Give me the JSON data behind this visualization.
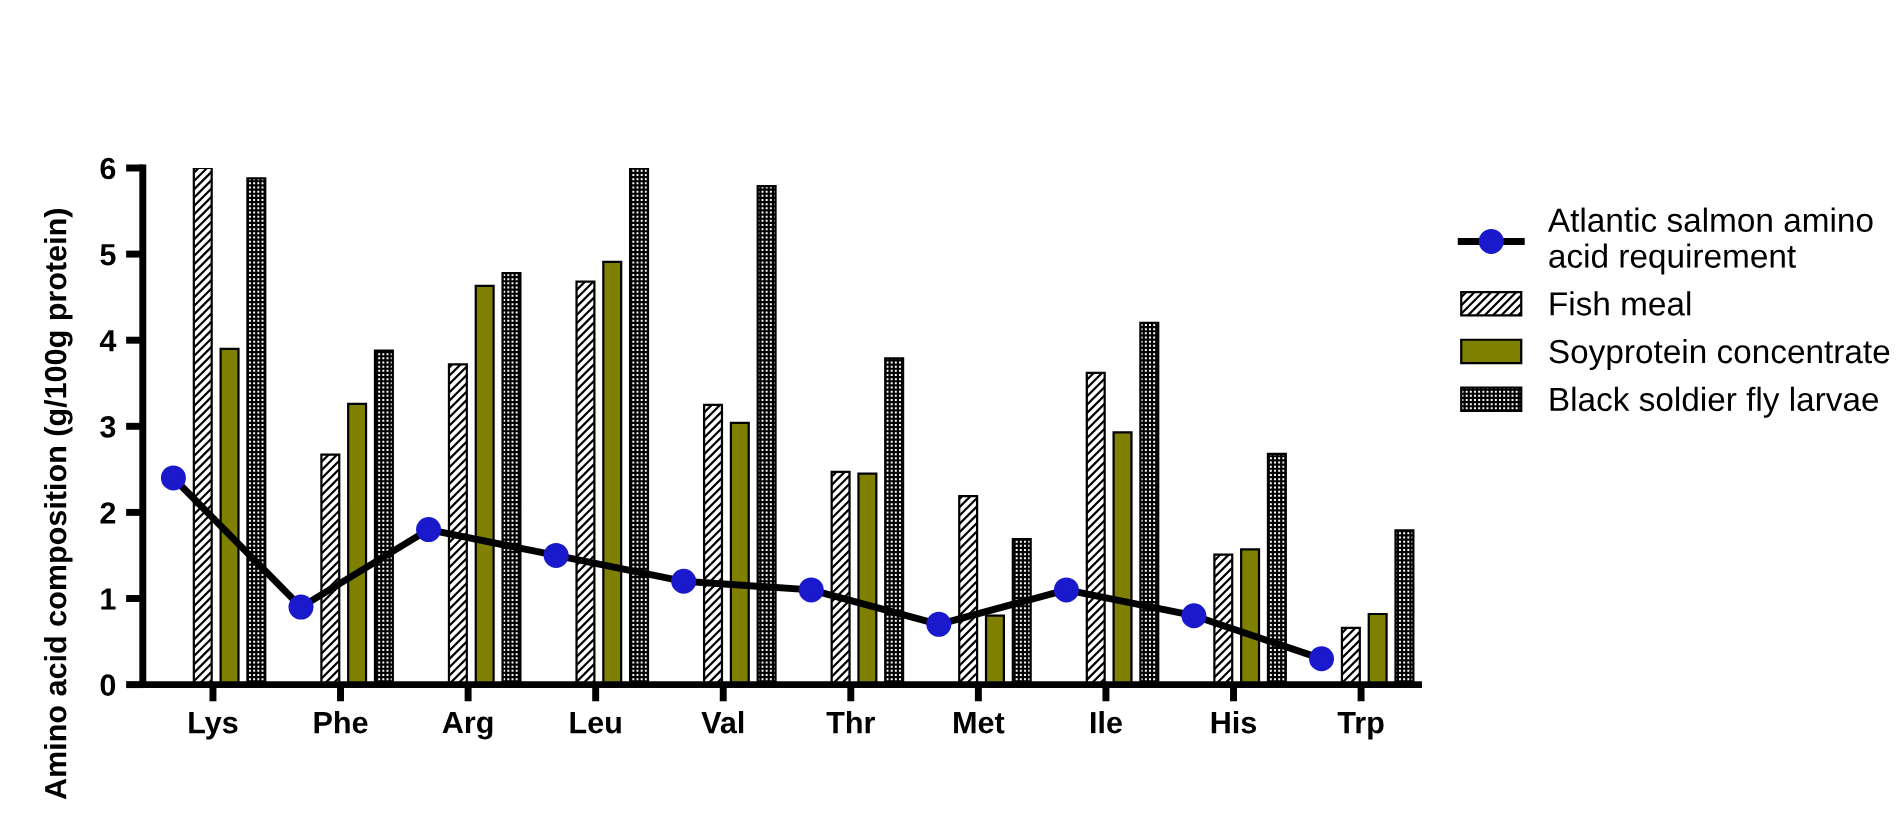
{
  "chart_data": {
    "type": "bar",
    "ylabel": "Amino acid composition (g/100g protein)",
    "categories": [
      "Lys",
      "Phe",
      "Arg",
      "Leu",
      "Val",
      "Thr",
      "Met",
      "Ile",
      "His",
      "Trp"
    ],
    "series": [
      {
        "name": "Atlantic salmon amino acid requirement",
        "type": "line",
        "color": "#1a1acc",
        "marker": "circle",
        "values": [
          2.4,
          0.9,
          1.8,
          1.5,
          1.2,
          1.1,
          0.7,
          1.1,
          0.8,
          0.3
        ]
      },
      {
        "name": "Fish meal",
        "color": "#000000",
        "values": [
          6.0,
          2.67,
          3.72,
          4.68,
          3.25,
          2.47,
          2.19,
          3.62,
          1.51,
          0.66
        ]
      },
      {
        "name": "Soyprotein concentrate",
        "color": "#808000",
        "values": [
          3.9,
          3.26,
          4.63,
          4.91,
          3.04,
          2.45,
          0.8,
          2.93,
          1.57,
          0.82
        ]
      },
      {
        "name": "Black soldier fly larvae",
        "color": "#000000",
        "values": [
          5.88,
          3.88,
          4.78,
          6.0,
          5.79,
          3.79,
          1.69,
          4.2,
          2.68,
          1.79
        ]
      }
    ],
    "ylim": [
      0,
      6
    ],
    "yticks": [
      0,
      1,
      2,
      3,
      4,
      5,
      6
    ],
    "grid": false,
    "legend": "right"
  }
}
